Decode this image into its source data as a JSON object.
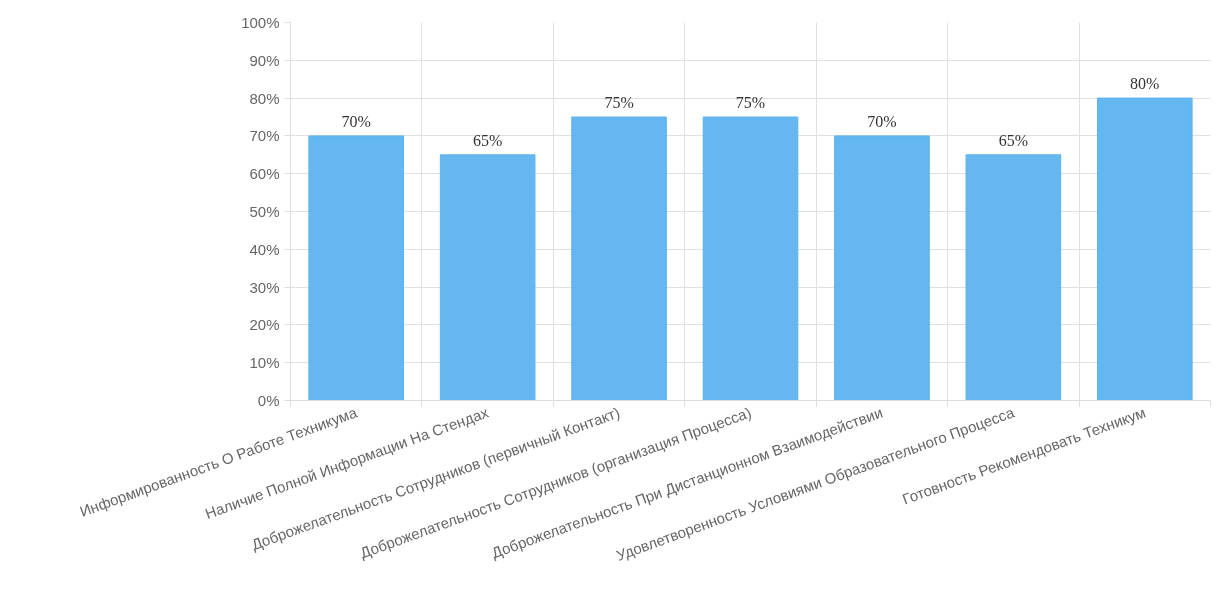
{
  "chart_data": {
    "type": "bar",
    "categories": [
      "Информированность О Работе Техникума",
      "Наличие Полной Информации На Стендах",
      "Доброжелательность Сотрудников (первичный Контакт)",
      "Доброжелательность Сотрудников (организация Процесса)",
      "Доброжелательность При Дистанционном Взаимодействии",
      "Удовлетворенность Условиями Образовательного Процесса",
      "Готовность Рекомендовать Техникум"
    ],
    "values": [
      70,
      65,
      75,
      75,
      70,
      65,
      80
    ],
    "value_labels": [
      "70%",
      "65%",
      "75%",
      "75%",
      "70%",
      "65%",
      "80%"
    ],
    "color": "#5db3ee",
    "ylim": [
      0,
      100
    ],
    "yticks": [
      {
        "value": 0,
        "label": "0%"
      },
      {
        "value": 10,
        "label": "10%"
      },
      {
        "value": 20,
        "label": "20%"
      },
      {
        "value": 30,
        "label": "30%"
      },
      {
        "value": 40,
        "label": "40%"
      },
      {
        "value": 50,
        "label": "50%"
      },
      {
        "value": 60,
        "label": "60%"
      },
      {
        "value": 70,
        "label": "70%"
      },
      {
        "value": 80,
        "label": "80%"
      },
      {
        "value": 90,
        "label": "90%"
      },
      {
        "value": 100,
        "label": "100%"
      }
    ],
    "grid": true
  }
}
